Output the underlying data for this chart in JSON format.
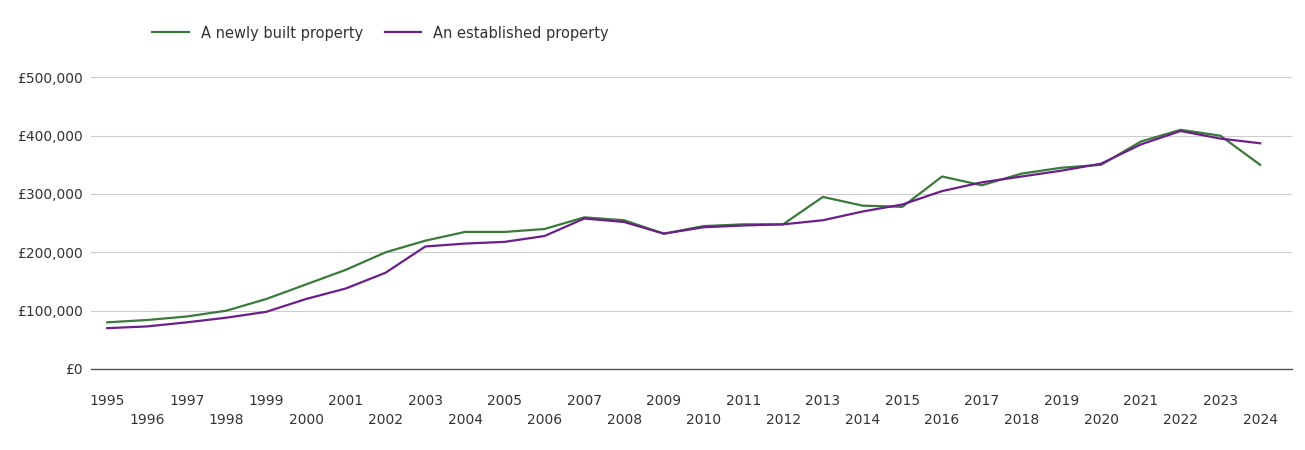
{
  "years": [
    1995,
    1996,
    1997,
    1998,
    1999,
    2000,
    2001,
    2002,
    2003,
    2004,
    2005,
    2006,
    2007,
    2008,
    2009,
    2010,
    2011,
    2012,
    2013,
    2014,
    2015,
    2016,
    2017,
    2018,
    2019,
    2020,
    2021,
    2022,
    2023,
    2024
  ],
  "new_property": [
    80000,
    84000,
    90000,
    100000,
    120000,
    145000,
    170000,
    200000,
    220000,
    235000,
    235000,
    240000,
    260000,
    255000,
    232000,
    245000,
    248000,
    248000,
    295000,
    280000,
    278000,
    330000,
    315000,
    335000,
    345000,
    350000,
    390000,
    410000,
    400000,
    350000
  ],
  "established_property": [
    70000,
    73000,
    80000,
    88000,
    98000,
    120000,
    138000,
    165000,
    210000,
    215000,
    218000,
    228000,
    258000,
    252000,
    232000,
    243000,
    246000,
    248000,
    255000,
    270000,
    282000,
    305000,
    320000,
    330000,
    340000,
    352000,
    385000,
    408000,
    395000,
    387000
  ],
  "new_color": "#3a7a3a",
  "established_color": "#6a1f8a",
  "background_color": "#ffffff",
  "legend_labels": [
    "A newly built property",
    "An established property"
  ],
  "ytick_labels": [
    "£0",
    "£100,000",
    "£200,000",
    "£300,000",
    "£400,000",
    "£500,000"
  ],
  "ytick_values": [
    0,
    100000,
    200000,
    300000,
    400000,
    500000
  ],
  "ylim": [
    0,
    540000
  ],
  "xlim_min": 1994.6,
  "xlim_max": 2024.8,
  "linewidth": 1.6,
  "grid_color": "#cccccc",
  "tick_label_fontsize": 10,
  "label_color": "#333333"
}
